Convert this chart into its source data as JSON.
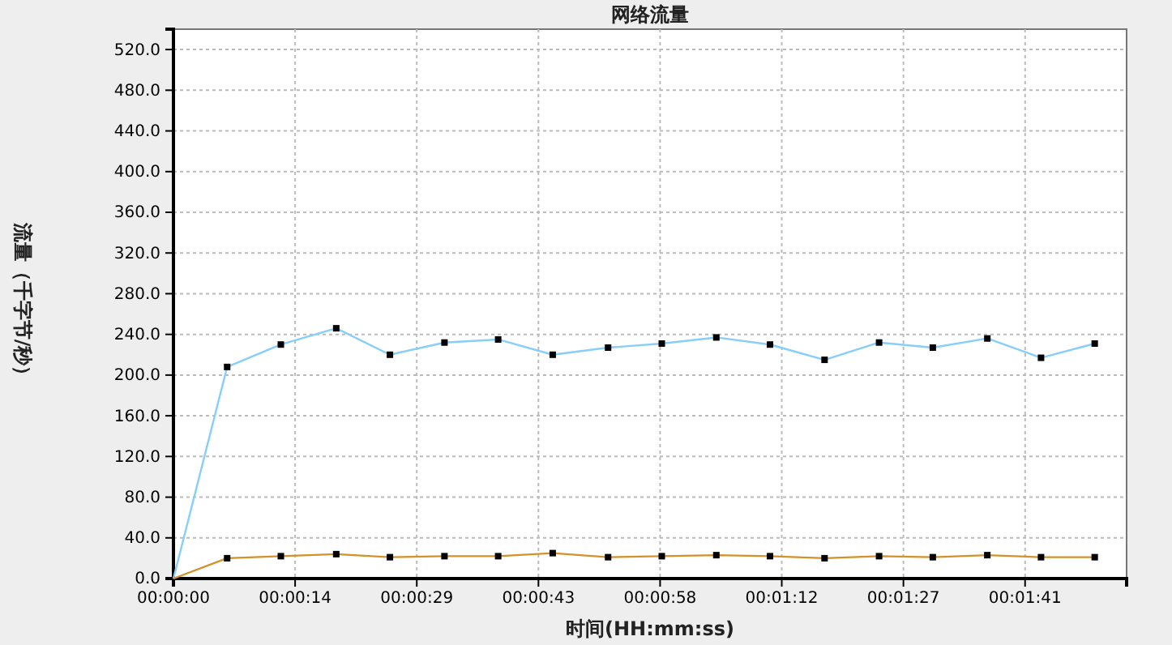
{
  "chart_data": {
    "type": "line",
    "title": "网络流量",
    "xlabel": "时间(HH:mm:ss)",
    "ylabel": "流量（千字节/秒）",
    "x": [
      0,
      6.4,
      12.8,
      19.4,
      25.8,
      32.3,
      38.7,
      45.2,
      51.8,
      58.2,
      64.7,
      71.1,
      77.6,
      84.1,
      90.5,
      97.0,
      103.4,
      109.8
    ],
    "series": [
      {
        "color": "#87cefa",
        "values": [
          0,
          208,
          230,
          246,
          220,
          232,
          235,
          220,
          227,
          231,
          237,
          230,
          215,
          232,
          227,
          236,
          217,
          231
        ]
      },
      {
        "color": "#d4912a",
        "values": [
          0,
          20,
          22,
          24,
          21,
          22,
          22,
          25,
          21,
          22,
          23,
          22,
          20,
          22,
          21,
          23,
          21,
          21
        ]
      }
    ],
    "xlim": [
      0,
      113.6
    ],
    "xticks": [
      {
        "value": 0,
        "label": "00:00:00"
      },
      {
        "value": 14.5,
        "label": "00:00:14"
      },
      {
        "value": 29,
        "label": "00:00:29"
      },
      {
        "value": 43.5,
        "label": "00:00:43"
      },
      {
        "value": 58,
        "label": "00:00:58"
      },
      {
        "value": 72.5,
        "label": "00:01:12"
      },
      {
        "value": 87,
        "label": "00:01:27"
      },
      {
        "value": 101.5,
        "label": "00:01:41"
      }
    ],
    "ylim": [
      0,
      540
    ],
    "yticks": [
      {
        "value": 0,
        "label": "0.0"
      },
      {
        "value": 40,
        "label": "40.0"
      },
      {
        "value": 80,
        "label": "80.0"
      },
      {
        "value": 120,
        "label": "120.0"
      },
      {
        "value": 160,
        "label": "160.0"
      },
      {
        "value": 200,
        "label": "200.0"
      },
      {
        "value": 240,
        "label": "240.0"
      },
      {
        "value": 280,
        "label": "280.0"
      },
      {
        "value": 320,
        "label": "320.0"
      },
      {
        "value": 360,
        "label": "360.0"
      },
      {
        "value": 400,
        "label": "400.0"
      },
      {
        "value": 440,
        "label": "440.0"
      },
      {
        "value": 480,
        "label": "480.0"
      },
      {
        "value": 520,
        "label": "520.0"
      }
    ],
    "grid": true,
    "marker": "square",
    "line_style": "solid"
  }
}
